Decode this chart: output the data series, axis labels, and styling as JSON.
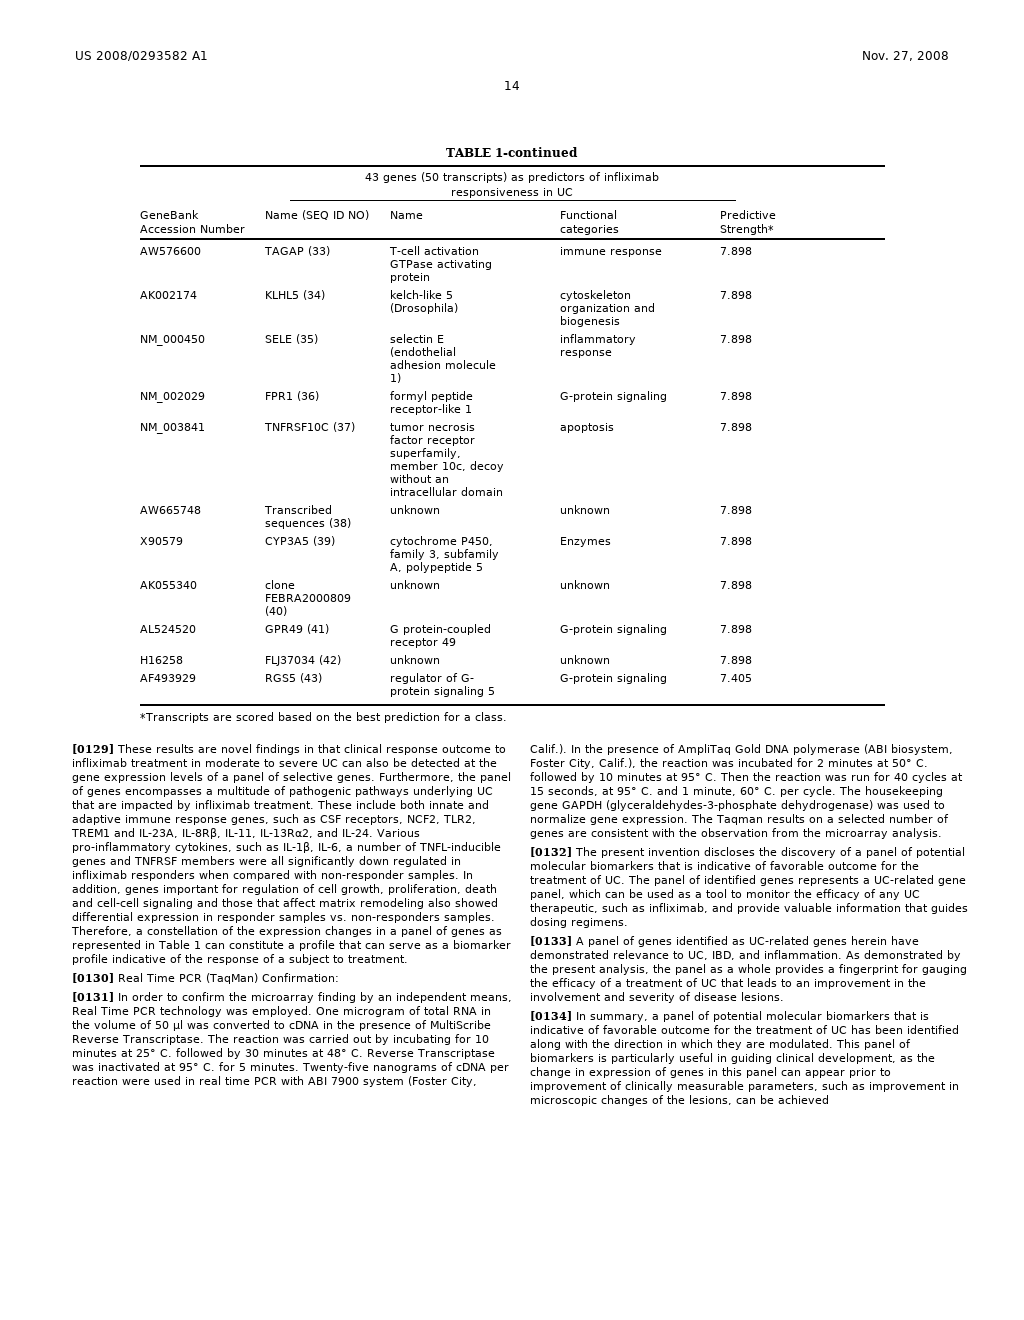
{
  "patent_number": "US 2008/0293582 A1",
  "date": "Nov. 27, 2008",
  "page_number": "14",
  "table_title": "TABLE 1-continued",
  "table_subtitle1": "43 genes (50 transcripts) as predictors of infliximab",
  "table_subtitle2": "responsiveness in UC",
  "col_headers_line1": [
    "GeneBank",
    "",
    "Name",
    "Functional",
    "Predictive"
  ],
  "col_headers_line2": [
    "Accession Number",
    "Name (SEQ ID NO)",
    "",
    "categories",
    "Strength*"
  ],
  "table_rows": [
    [
      "AW576600",
      "TAGAP (33)",
      "T-cell activation\nGTPase activating\nprotein",
      "immune response",
      "7.898"
    ],
    [
      "AK002174",
      "KLHL5 (34)",
      "kelch-like 5\n(Drosophila)",
      "cytoskeleton\norganization and\nbiogenesis",
      "7.898"
    ],
    [
      "NM_000450",
      "SELE (35)",
      "selectin E\n(endothelial\nadhesion molecule\n1)",
      "inflammatory\nresponse",
      "7.898"
    ],
    [
      "NM_002029",
      "FPR1 (36)",
      "formyl peptide\nreceptor-like 1",
      "G-protein signaling",
      "7.898"
    ],
    [
      "NM_003841",
      "TNFRSF10C (37)",
      "tumor necrosis\nfactor receptor\nsuperfamily,\nmember 10c, decoy\nwithout an\nintracellular domain",
      "apoptosis",
      "7.898"
    ],
    [
      "AW665748",
      "Transcribed\nsequences (38)",
      "unknown",
      "unknown",
      "7.898"
    ],
    [
      "X90579",
      "CYP3A5 (39)",
      "cytochrome P450,\nfamily 3, subfamily\nA, polypeptide 5",
      "Enzymes",
      "7.898"
    ],
    [
      "AK055340",
      "clone\nFEBRA2000809\n(40)",
      "unknown",
      "unknown",
      "7.898"
    ],
    [
      "AL524520",
      "GPR49 (41)",
      "G protein-coupled\nreceptor 49",
      "G-protein signaling",
      "7.898"
    ],
    [
      "H16258",
      "FLJ37034 (42)",
      "unknown",
      "unknown",
      "7.898"
    ],
    [
      "AF493929",
      "RGS5 (43)",
      "regulator of G-\nprotein signaling 5",
      "G-protein signaling",
      "7.405"
    ]
  ],
  "footnote": "*Transcripts are scored based on the best prediction for a class.",
  "left_paragraphs": [
    {
      "number": "[0129]",
      "bold_number": true,
      "text": "These results are novel findings in that clinical response outcome to infliximab treatment in moderate to severe UC can also be detected at the gene expression levels of a panel of selective genes. Furthermore, the panel of genes encompasses a multitude of pathogenic pathways underlying UC that are impacted by infliximab treatment. These include both innate and adaptive immune response genes, such as CSF receptors, NCF2, TLR2, TREM1 and IL-23A, IL-8Rβ, IL-11, IL-13Rα2, and IL-24. Various pro-inflammatory cytokines, such as IL-1β, IL-6, a number of TNFL-inducible genes and TNFRSF members were all significantly down regulated in infliximab responders when compared with non-responder samples. In addition, genes important for regulation of cell growth, proliferation, death and cell-cell signaling and those that affect matrix remodeling also showed differential expression in responder samples vs. non-responders samples. Therefore, a constellation of the expression changes in a panel of genes as represented in Table 1 can constitute a profile that can serve as a biomarker profile indicative of the response of a subject to treatment."
    },
    {
      "number": "[0130]",
      "bold_number": true,
      "text": "Real Time PCR (TaqMan) Confirmation:"
    },
    {
      "number": "[0131]",
      "bold_number": true,
      "text": "In order to confirm the microarray finding by an independent means, Real Time PCR technology was employed. One microgram of total RNA in the volume of 50 μl was converted to cDNA in the presence of MultiScribe Reverse Transcriptase. The reaction was carried out by incubating for 10 minutes at 25° C. followed by 30 minutes at 48° C. Reverse Transcriptase was inactivated at 95° C. for 5 minutes. Twenty-five nanograms of cDNA per reaction were used in real time PCR with ABI 7900 system (Foster City,"
    }
  ],
  "right_paragraphs": [
    {
      "number": "",
      "bold_number": false,
      "text": "Calif.). In the presence of AmpliTaq Gold DNA polymerase (ABI biosystem, Foster City, Calif.), the reaction was incubated for 2 minutes at 50° C. followed by 10 minutes at 95° C. Then the reaction was run for 40 cycles at 15 seconds, at 95° C. and 1 minute, 60° C. per cycle. The housekeeping gene GAPDH (glyceraldehydes-3-phosphate dehydrogenase) was used to normalize gene expression. The Taqman results on a selected number of genes are consistent with the observation from the microarray analysis."
    },
    {
      "number": "[0132]",
      "bold_number": true,
      "text": "The present invention discloses the discovery of a panel of potential molecular biomarkers that is indicative of favorable outcome for the treatment of UC. The panel of identified genes represents a UC-related gene panel, which can be used as a tool to monitor the efficacy of any UC therapeutic, such as infliximab, and provide valuable information that guides dosing regimens."
    },
    {
      "number": "[0133]",
      "bold_number": true,
      "text": "A panel of genes identified as UC-related genes herein have demonstrated relevance to UC, IBD, and inflammation. As demonstrated by the present analysis, the panel as a whole provides a fingerprint for gauging the efficacy of a treatment of UC that leads to an improvement in the involvement and severity of disease lesions."
    },
    {
      "number": "[0134]",
      "bold_number": true,
      "text": "In summary, a panel of potential molecular biomarkers that is indicative of favorable outcome for the treatment of UC has been identified along with the direction in which they are modulated. This panel of biomarkers is particularly useful in guiding clinical development, as the change in expression of genes in this panel can appear prior to improvement of clinically measurable parameters, such as improvement in microscopic changes of the lesions, can be achieved"
    }
  ],
  "background_color": "#ffffff",
  "text_color": "#000000"
}
